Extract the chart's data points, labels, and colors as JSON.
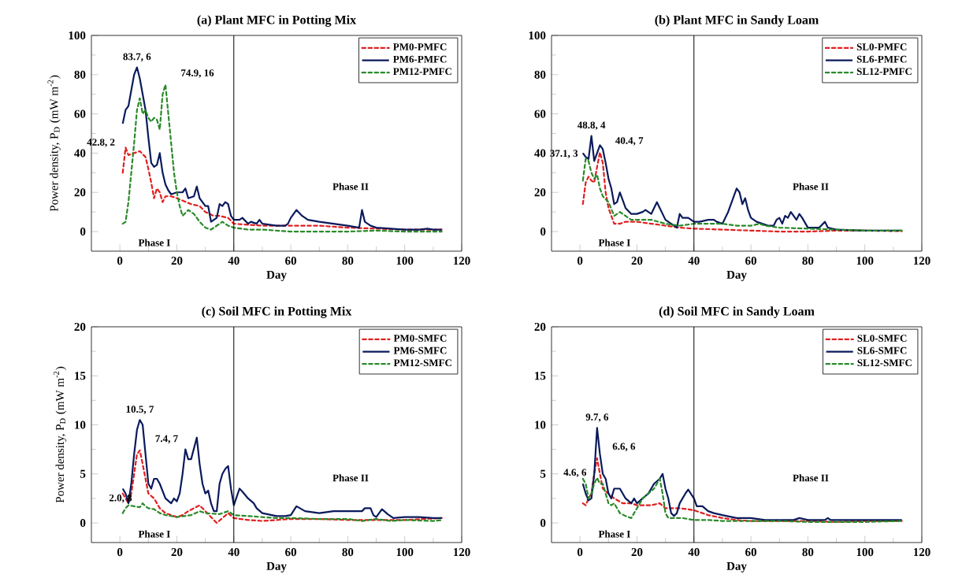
{
  "chart_data": [
    {
      "type": "line",
      "title": "(a) Plant MFC in Potting Mix",
      "xlabel": "Day",
      "ylabel": "Power density, P$_{D}$ (mW m$^{-2}$)",
      "xlim": [
        -10,
        120
      ],
      "xticks": [
        0,
        20,
        40,
        60,
        80,
        100,
        120
      ],
      "ylim": [
        -10,
        100
      ],
      "yticks": [
        0,
        20,
        40,
        60,
        80,
        100
      ],
      "legend": "top right",
      "ref_lines": [
        {
          "axis": "x",
          "value": 40
        }
      ],
      "annotations": [
        {
          "text": "83.7, 6",
          "x": 6,
          "y": 83.7
        },
        {
          "text": "74.9, 16",
          "x": 16,
          "y": 74.9
        },
        {
          "text": "42.8, 2",
          "x": 2,
          "y": 42.8
        },
        "Phase I",
        "Phase II"
      ],
      "series": [
        {
          "name": "PM0-PMFC",
          "color": "#e02020",
          "line_style": "dashed",
          "x": [
            1,
            2,
            3,
            5,
            7,
            9,
            10,
            11,
            12,
            13,
            14,
            15,
            16,
            18,
            20,
            25,
            28,
            30,
            33,
            35,
            38,
            40,
            50,
            60,
            70,
            80,
            90,
            100,
            113
          ],
          "values": [
            30,
            42.8,
            39,
            40,
            41,
            38,
            32,
            25,
            17,
            22,
            20,
            15,
            18,
            18,
            17,
            14,
            13,
            10,
            8,
            8,
            7,
            4,
            3,
            3,
            3,
            2,
            1.5,
            1,
            1
          ]
        },
        {
          "name": "PM6-PMFC",
          "color": "#0a1a5c",
          "line_style": "solid",
          "x": [
            1,
            2,
            3,
            4,
            5,
            6,
            7,
            8,
            9,
            10,
            11,
            12,
            13,
            14,
            15,
            16,
            17,
            18,
            20,
            22,
            23,
            24,
            26,
            27,
            28,
            30,
            31,
            32,
            34,
            35,
            36,
            37,
            38,
            39,
            40,
            42,
            43,
            45,
            46,
            48,
            49,
            50,
            55,
            58,
            59,
            60,
            62,
            64,
            66,
            70,
            75,
            80,
            84,
            85,
            86,
            88,
            90,
            95,
            100,
            105,
            108,
            110,
            113
          ],
          "values": [
            55,
            62,
            64,
            72,
            80,
            83.7,
            78,
            70,
            62,
            48,
            35,
            33,
            34,
            40,
            30,
            24,
            21,
            19,
            20,
            20,
            22,
            17,
            18,
            23,
            17,
            13,
            13,
            5,
            7,
            14,
            13,
            15,
            14,
            8,
            6,
            6,
            7,
            4,
            5,
            4,
            6,
            4,
            3,
            3,
            4,
            7,
            11,
            8,
            6,
            5,
            4,
            3,
            2,
            11,
            5,
            3,
            2,
            1.5,
            1,
            1,
            1.5,
            1,
            1
          ]
        },
        {
          "name": "PM12-PMFC",
          "color": "#2a8a2a",
          "line_style": "dashed",
          "x": [
            1,
            2,
            3,
            4,
            5,
            6,
            7,
            8,
            9,
            10,
            11,
            12,
            13,
            14,
            15,
            16,
            17,
            18,
            19,
            20,
            21,
            22,
            24,
            26,
            28,
            30,
            32,
            34,
            36,
            38,
            40,
            45,
            50,
            60,
            70,
            80,
            90,
            100,
            113
          ],
          "values": [
            4,
            5,
            15,
            30,
            45,
            62,
            68,
            60,
            62,
            58,
            56,
            58,
            57,
            52,
            70,
            74.9,
            60,
            45,
            30,
            20,
            13,
            8,
            11,
            9,
            5,
            2,
            1,
            3,
            5,
            3,
            2,
            1,
            1,
            0,
            0,
            0,
            0.5,
            0,
            0
          ]
        }
      ]
    },
    {
      "type": "line",
      "title": "(b) Plant MFC in Sandy Loam",
      "xlabel": "Day",
      "xlim": [
        -10,
        120
      ],
      "xticks": [
        0,
        20,
        40,
        60,
        80,
        100,
        120
      ],
      "ylim": [
        -10,
        100
      ],
      "yticks": [
        0,
        20,
        40,
        60,
        80,
        100
      ],
      "legend": "top right",
      "ref_lines": [
        {
          "axis": "x",
          "value": 40
        }
      ],
      "annotations": [
        {
          "text": "48.8, 4",
          "x": 4,
          "y": 48.8
        },
        {
          "text": "40.4, 7",
          "x": 7,
          "y": 40.4
        },
        {
          "text": "37.1, 3",
          "x": 3,
          "y": 37.1
        },
        "Phase I",
        "Phase II"
      ],
      "series": [
        {
          "name": "SL0-PMFC",
          "color": "#e02020",
          "line_style": "dashed",
          "x": [
            1,
            2,
            3,
            4,
            5,
            6,
            7,
            8,
            9,
            10,
            12,
            14,
            16,
            20,
            25,
            30,
            35,
            40,
            50,
            60,
            70,
            80,
            90,
            100,
            113
          ],
          "values": [
            14,
            25,
            28,
            26,
            25,
            33,
            40.4,
            35,
            20,
            12,
            4,
            4,
            5,
            5,
            4,
            3,
            2,
            1.5,
            1,
            0.5,
            0,
            0,
            0.5,
            0.5,
            0.2
          ]
        },
        {
          "name": "SL6-PMFC",
          "color": "#0a1a5c",
          "line_style": "solid",
          "x": [
            1,
            2,
            3,
            4,
            5,
            6,
            7,
            8,
            9,
            10,
            11,
            12,
            13,
            14,
            15,
            16,
            18,
            20,
            22,
            23,
            25,
            27,
            28,
            30,
            32,
            34,
            35,
            36,
            38,
            40,
            42,
            45,
            47,
            48,
            50,
            52,
            54,
            55,
            56,
            57,
            58,
            59,
            60,
            62,
            64,
            66,
            68,
            69,
            70,
            71,
            72,
            73,
            74,
            75,
            76,
            77,
            78,
            80,
            84,
            86,
            87,
            90,
            100,
            113
          ],
          "values": [
            40,
            38,
            37,
            48.8,
            36,
            40,
            44,
            42,
            35,
            27,
            22,
            14,
            15,
            20,
            16,
            12,
            9,
            9,
            10,
            11,
            9,
            15,
            12,
            6,
            4,
            2,
            9,
            7,
            7,
            5,
            5,
            6,
            6,
            5,
            4,
            10,
            18,
            22,
            20,
            14,
            17,
            11,
            7,
            5,
            4,
            3,
            3,
            6,
            7,
            4,
            8,
            7,
            10,
            8,
            6,
            9,
            7,
            2,
            2,
            5,
            2,
            1,
            0.5,
            0.5
          ]
        },
        {
          "name": "SL12-PMFC",
          "color": "#2a8a2a",
          "line_style": "dashed",
          "x": [
            1,
            2,
            3,
            4,
            5,
            6,
            7,
            8,
            10,
            12,
            14,
            16,
            18,
            20,
            25,
            30,
            35,
            40,
            45,
            50,
            55,
            60,
            63,
            65,
            70,
            80,
            90,
            100,
            113
          ],
          "values": [
            26,
            37.1,
            36,
            30,
            27,
            29,
            22,
            18,
            15,
            8,
            10,
            8,
            6,
            6,
            6,
            4,
            3,
            4,
            4,
            4,
            3,
            3,
            4,
            3,
            2,
            1.5,
            1,
            0.5,
            0.5
          ]
        }
      ]
    },
    {
      "type": "line",
      "title": "(c) Soil MFC in Potting Mix",
      "xlabel": "Day",
      "ylabel": "Power density, P$_{D}$ (mW m$^{-2}$)",
      "xlim": [
        -10,
        120
      ],
      "xticks": [
        0,
        20,
        40,
        60,
        80,
        100,
        120
      ],
      "ylim": [
        -2,
        20
      ],
      "yticks": [
        0,
        5,
        10,
        15,
        20
      ],
      "legend": "top right",
      "ref_lines": [
        {
          "axis": "x",
          "value": 40
        }
      ],
      "annotations": [
        {
          "text": "10.5, 7",
          "x": 7,
          "y": 10.5
        },
        {
          "text": "7.4, 7",
          "x": 7,
          "y": 7.4
        },
        {
          "text": "2.0, 8",
          "x": 8,
          "y": 2.0
        },
        "Phase I",
        "Phase II"
      ],
      "series": [
        {
          "name": "PM0-SMFC",
          "color": "#e02020",
          "line_style": "dashed",
          "x": [
            1,
            2,
            3,
            4,
            5,
            6,
            7,
            8,
            9,
            10,
            12,
            14,
            16,
            20,
            22,
            24,
            26,
            28,
            30,
            32,
            34,
            36,
            38,
            40,
            45,
            50,
            55,
            60,
            70,
            80,
            90,
            100,
            113
          ],
          "values": [
            3,
            2.5,
            2,
            3,
            5,
            7,
            7.4,
            6,
            4.5,
            3,
            2.5,
            1.5,
            1,
            0.6,
            0.8,
            1.2,
            1.5,
            1.8,
            1.2,
            0.6,
            0,
            0.5,
            1,
            0.5,
            0.3,
            0.2,
            0.3,
            0.4,
            0.4,
            0.3,
            0.3,
            0.3,
            0.5
          ]
        },
        {
          "name": "PM6-SMFC",
          "color": "#0a1a5c",
          "line_style": "solid",
          "x": [
            1,
            2,
            3,
            4,
            5,
            6,
            7,
            8,
            9,
            10,
            11,
            12,
            13,
            14,
            16,
            18,
            19,
            20,
            21,
            22,
            23,
            24,
            25,
            27,
            28,
            29,
            30,
            31,
            32,
            33,
            34,
            35,
            36,
            37,
            38,
            39,
            40,
            42,
            43,
            45,
            47,
            48,
            50,
            55,
            58,
            60,
            62,
            65,
            70,
            75,
            80,
            85,
            86,
            88,
            89,
            90,
            92,
            94,
            96,
            100,
            105,
            110,
            113
          ],
          "values": [
            3.5,
            3,
            2,
            4,
            7,
            9.5,
            10.5,
            10,
            7,
            4,
            3.5,
            4.5,
            4.5,
            4,
            2.5,
            2,
            2.5,
            2.2,
            3,
            5,
            7.5,
            6.5,
            6.5,
            8.7,
            6,
            4,
            3,
            3.3,
            2,
            1.2,
            1.2,
            4,
            5,
            5.5,
            5.8,
            3.5,
            1.8,
            3.5,
            3.2,
            2.5,
            2,
            1.5,
            1,
            0.7,
            0.7,
            0.8,
            1.7,
            1.2,
            1,
            1.2,
            1.2,
            1.2,
            1.5,
            1.5,
            0.8,
            0.6,
            1.4,
            0.9,
            0.5,
            0.6,
            0.6,
            0.5,
            0.5
          ]
        },
        {
          "name": "PM12-SMFC",
          "color": "#2a8a2a",
          "line_style": "dashed",
          "x": [
            1,
            2,
            3,
            5,
            7,
            8,
            9,
            10,
            12,
            14,
            16,
            20,
            25,
            28,
            30,
            35,
            38,
            40,
            45,
            50,
            55,
            60,
            70,
            80,
            85,
            90,
            95,
            100,
            110,
            113
          ],
          "values": [
            1,
            1.5,
            1.8,
            1.7,
            1.6,
            2.0,
            1.7,
            1.5,
            1.4,
            1,
            0.8,
            0.6,
            0.8,
            1.2,
            1,
            0.9,
            1.2,
            0.8,
            0.7,
            0.6,
            0.5,
            0.5,
            0.4,
            0.4,
            0.2,
            0.4,
            0.2,
            0.3,
            0.2,
            0.3
          ]
        }
      ]
    },
    {
      "type": "line",
      "title": "(d) Soil MFC in Sandy Loam",
      "xlabel": "Day",
      "xlim": [
        -10,
        120
      ],
      "xticks": [
        0,
        20,
        40,
        60,
        80,
        100,
        120
      ],
      "ylim": [
        -2,
        20
      ],
      "yticks": [
        0,
        5,
        10,
        15,
        20
      ],
      "legend": "top right",
      "ref_lines": [
        {
          "axis": "x",
          "value": 40
        }
      ],
      "annotations": [
        {
          "text": "9.7, 6",
          "x": 6,
          "y": 9.7
        },
        {
          "text": "6.6, 6",
          "x": 6,
          "y": 6.6
        },
        {
          "text": "4.6, 6",
          "x": 6,
          "y": 4.6
        },
        "Phase I",
        "Phase II"
      ],
      "series": [
        {
          "name": "SL0-SMFC",
          "color": "#e02020",
          "line_style": "dashed",
          "x": [
            1,
            2,
            3,
            4,
            5,
            6,
            7,
            8,
            10,
            12,
            15,
            18,
            20,
            25,
            28,
            30,
            35,
            40,
            45,
            50,
            55,
            60,
            70,
            80,
            90,
            100,
            113
          ],
          "values": [
            2,
            1.8,
            2.5,
            3,
            5,
            6.6,
            5,
            3.5,
            3,
            2.5,
            2,
            2,
            1.8,
            1.8,
            2,
            1.5,
            1.5,
            1.3,
            0.8,
            0.5,
            0.3,
            0.2,
            0.2,
            0.2,
            0.1,
            0.2,
            0.2
          ]
        },
        {
          "name": "SL6-SMFC",
          "color": "#0a1a5c",
          "line_style": "solid",
          "x": [
            1,
            2,
            3,
            4,
            5,
            6,
            7,
            8,
            9,
            10,
            11,
            12,
            14,
            16,
            18,
            19,
            20,
            22,
            24,
            26,
            28,
            29,
            30,
            31,
            32,
            33,
            34,
            35,
            37,
            38,
            40,
            41,
            43,
            45,
            47,
            50,
            55,
            60,
            65,
            70,
            75,
            77,
            80,
            86,
            87,
            88,
            95,
            100,
            113
          ],
          "values": [
            4,
            3,
            2.3,
            2.5,
            5,
            9.7,
            7,
            5,
            4.5,
            3,
            2.5,
            3.5,
            3.5,
            2.5,
            2,
            2.5,
            2,
            2.5,
            3,
            4,
            4.5,
            5,
            3.5,
            2.5,
            1,
            0.7,
            1,
            2,
            3,
            3.4,
            2.5,
            1.7,
            1.7,
            1.2,
            1,
            0.8,
            0.5,
            0.5,
            0.3,
            0.3,
            0.3,
            0.5,
            0.3,
            0.3,
            0.5,
            0.3,
            0.3,
            0.3,
            0.3
          ]
        },
        {
          "name": "SL12-SMFC",
          "color": "#2a8a2a",
          "line_style": "dashed",
          "x": [
            1,
            2,
            3,
            4,
            5,
            6,
            7,
            8,
            9,
            10,
            11,
            12,
            14,
            16,
            18,
            20,
            22,
            24,
            26,
            28,
            29,
            30,
            31,
            34,
            36,
            40,
            45,
            50,
            60,
            70,
            80,
            90,
            100,
            113
          ],
          "values": [
            4.5,
            4,
            2.5,
            3,
            4,
            4.6,
            4,
            4,
            3,
            2,
            1.8,
            2,
            1,
            0.7,
            0.5,
            1.5,
            2.5,
            3,
            3.5,
            4.5,
            3,
            1,
            0.5,
            0.5,
            0.5,
            0.3,
            0.3,
            0.2,
            0.2,
            0.2,
            0.1,
            0.1,
            0.1,
            0.2
          ]
        }
      ]
    }
  ]
}
